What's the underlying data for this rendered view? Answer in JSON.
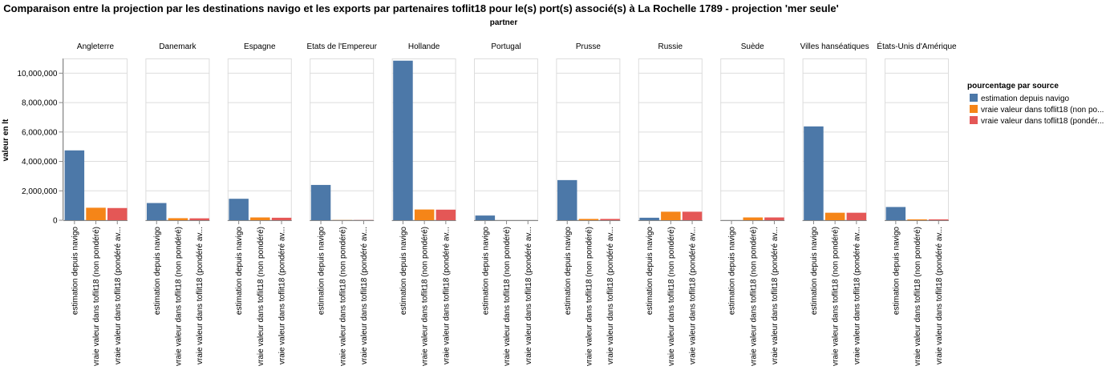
{
  "chart_data": {
    "type": "bar",
    "title": "Comparaison entre la projection par les destinations navigo et les exports par partenaires toflit18 pour le(s) port(s) associé(s) à La Rochelle 1789 - projection 'mer seule'",
    "column_title": "partner",
    "ylabel": "valeur en lt",
    "ylim": [
      0,
      11000000
    ],
    "yticks": [
      0,
      2000000,
      4000000,
      6000000,
      8000000,
      10000000
    ],
    "ytick_labels": [
      "0",
      "2,000,000",
      "4,000,000",
      "6,000,000",
      "8,000,000",
      "10,000,000"
    ],
    "grid": true,
    "legend_position": "right",
    "legend_title": "pourcentage par source",
    "categories": [
      "estimation depuis navigo",
      "vraie valeur dans toflit18 (non pondéré)",
      "vraie valeur dans toflit18 (pondéré av..."
    ],
    "legend_entries": [
      {
        "label": "estimation depuis navigo",
        "color": "#4c78a8"
      },
      {
        "label": "vraie valeur dans toflit18 (non po...",
        "color": "#f58518"
      },
      {
        "label": "vraie valeur dans toflit18 (pondér...",
        "color": "#e45756"
      }
    ],
    "facets": [
      {
        "partner": "Angleterre",
        "values": [
          4750000,
          850000,
          830000
        ]
      },
      {
        "partner": "Danemark",
        "values": [
          1170000,
          140000,
          130000
        ]
      },
      {
        "partner": "Espagne",
        "values": [
          1460000,
          190000,
          170000
        ]
      },
      {
        "partner": "Etats de l'Empereur",
        "values": [
          2400000,
          10000,
          10000
        ]
      },
      {
        "partner": "Hollande",
        "values": [
          10850000,
          730000,
          720000
        ]
      },
      {
        "partner": "Portugal",
        "values": [
          320000,
          0,
          0
        ]
      },
      {
        "partner": "Prusse",
        "values": [
          2730000,
          90000,
          90000
        ]
      },
      {
        "partner": "Russie",
        "values": [
          170000,
          580000,
          580000
        ]
      },
      {
        "partner": "Suède",
        "values": [
          0,
          190000,
          190000
        ]
      },
      {
        "partner": "Villes hanséatiques",
        "values": [
          6380000,
          510000,
          510000
        ]
      },
      {
        "partner": "États-Unis d'Amérique",
        "values": [
          900000,
          60000,
          60000
        ]
      }
    ]
  }
}
